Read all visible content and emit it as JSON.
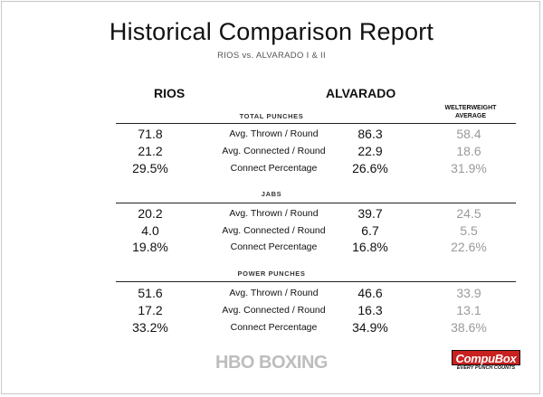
{
  "title": "Historical Comparison Report",
  "subtitle": "RIOS vs. ALVARADO I & II",
  "fighters": {
    "left": "RIOS",
    "right": "ALVARADO"
  },
  "average_header_line1": "WELTERWEIGHT",
  "average_header_line2": "AVERAGE",
  "sections": [
    {
      "label": "TOTAL PUNCHES",
      "rows": [
        {
          "rios": "71.8",
          "metric": "Avg. Thrown / Round",
          "alvarado": "86.3",
          "average": "58.4"
        },
        {
          "rios": "21.2",
          "metric": "Avg. Connected / Round",
          "alvarado": "22.9",
          "average": "18.6"
        },
        {
          "rios": "29.5%",
          "metric": "Connect Percentage",
          "alvarado": "26.6%",
          "average": "31.9%"
        }
      ]
    },
    {
      "label": "JABS",
      "rows": [
        {
          "rios": "20.2",
          "metric": "Avg. Thrown / Round",
          "alvarado": "39.7",
          "average": "24.5"
        },
        {
          "rios": "4.0",
          "metric": "Avg. Connected / Round",
          "alvarado": "6.7",
          "average": "5.5"
        },
        {
          "rios": "19.8%",
          "metric": "Connect Percentage",
          "alvarado": "16.8%",
          "average": "22.6%"
        }
      ]
    },
    {
      "label": "POWER PUNCHES",
      "rows": [
        {
          "rios": "51.6",
          "metric": "Avg. Thrown / Round",
          "alvarado": "46.6",
          "average": "33.9"
        },
        {
          "rios": "17.2",
          "metric": "Avg. Connected / Round",
          "alvarado": "16.3",
          "average": "13.1"
        },
        {
          "rios": "33.2%",
          "metric": "Connect Percentage",
          "alvarado": "34.9%",
          "average": "38.6%"
        }
      ]
    }
  ],
  "logos": {
    "hbo": "HBO BOXING",
    "compubox": "CompuBox",
    "compubox_tagline": "EVERY PUNCH COUNTS"
  },
  "colors": {
    "average_values": "#9a9a9a",
    "compubox_red": "#c8211f"
  }
}
